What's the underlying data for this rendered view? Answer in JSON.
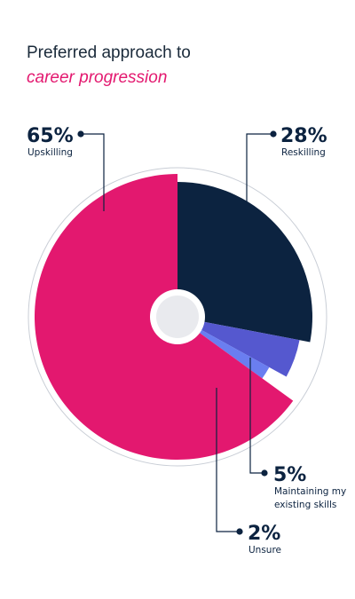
{
  "header": {
    "title": "Preferred approach to",
    "subtitle": "career progression"
  },
  "colors": {
    "upskilling": "#e3186f",
    "reskilling": "#0c2340",
    "maintaining": "#5558cf",
    "unsure": "#6a7ef0",
    "ring": "#c9ced6",
    "hub": "#e9eaee"
  },
  "chart_data": {
    "type": "pie",
    "style": "variable-radius polar pie with center hole",
    "title": "Preferred approach to career progression",
    "slices": [
      {
        "label": "Reskilling",
        "value": 28,
        "value_label": "28%",
        "color": "#0c2340"
      },
      {
        "label": "Maintaining my existing skills",
        "value": 5,
        "value_label": "5%",
        "color": "#5558cf"
      },
      {
        "label": "Unsure",
        "value": 2,
        "value_label": "2%",
        "color": "#6a7ef0"
      },
      {
        "label": "Upskilling",
        "value": 65,
        "value_label": "65%",
        "color": "#e3186f"
      }
    ]
  }
}
